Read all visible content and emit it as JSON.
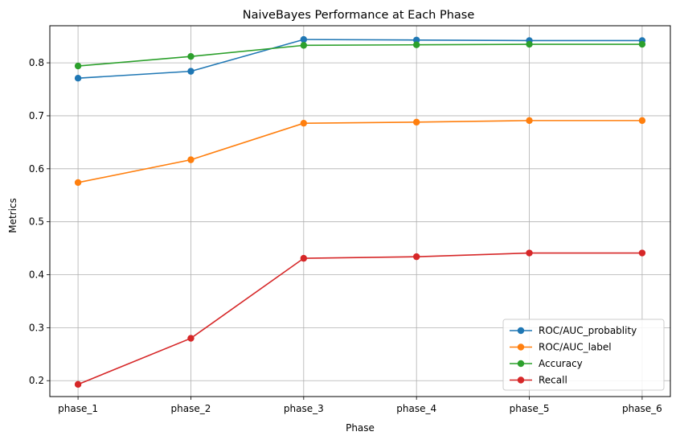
{
  "chart_data": {
    "type": "line",
    "title": "NaiveBayes Performance at Each Phase",
    "xlabel": "Phase",
    "ylabel": "Metrics",
    "categories": [
      "phase_1",
      "phase_2",
      "phase_3",
      "phase_4",
      "phase_5",
      "phase_6"
    ],
    "ylim": [
      0.17,
      0.87
    ],
    "yticks": [
      0.2,
      0.3,
      0.4,
      0.5,
      0.6,
      0.7,
      0.8
    ],
    "grid": true,
    "legend_position": "lower-right",
    "series": [
      {
        "name": "ROC/AUC_probablity",
        "color": "#1f77b4",
        "values": [
          0.771,
          0.784,
          0.844,
          0.843,
          0.842,
          0.842
        ]
      },
      {
        "name": "ROC/AUC_label",
        "color": "#ff7f0e",
        "values": [
          0.574,
          0.617,
          0.686,
          0.688,
          0.691,
          0.691
        ]
      },
      {
        "name": "Accuracy",
        "color": "#2ca02c",
        "values": [
          0.794,
          0.812,
          0.833,
          0.834,
          0.835,
          0.835
        ]
      },
      {
        "name": "Recall",
        "color": "#d62728",
        "values": [
          0.193,
          0.28,
          0.431,
          0.434,
          0.441,
          0.441
        ]
      }
    ]
  }
}
